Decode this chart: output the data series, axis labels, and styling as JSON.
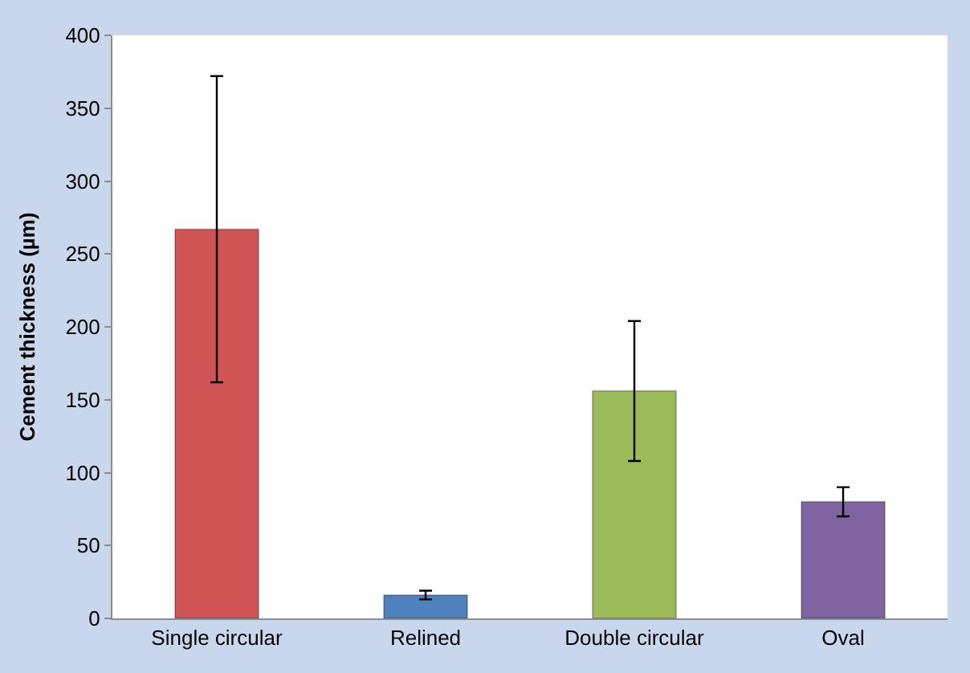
{
  "chart_data": {
    "type": "bar",
    "ylabel": "Cement thickness (µm)",
    "categories": [
      "Single circular",
      "Relined",
      "Double circular",
      "Oval"
    ],
    "values": [
      267,
      16,
      156,
      80
    ],
    "colors": [
      "#d05454",
      "#4f81bd",
      "#9bbb59",
      "#8064a2"
    ],
    "errors": [
      105,
      3,
      48,
      10
    ],
    "ylim": [
      0,
      400
    ],
    "yticks": [
      0,
      50,
      100,
      150,
      200,
      250,
      300,
      350,
      400
    ]
  }
}
